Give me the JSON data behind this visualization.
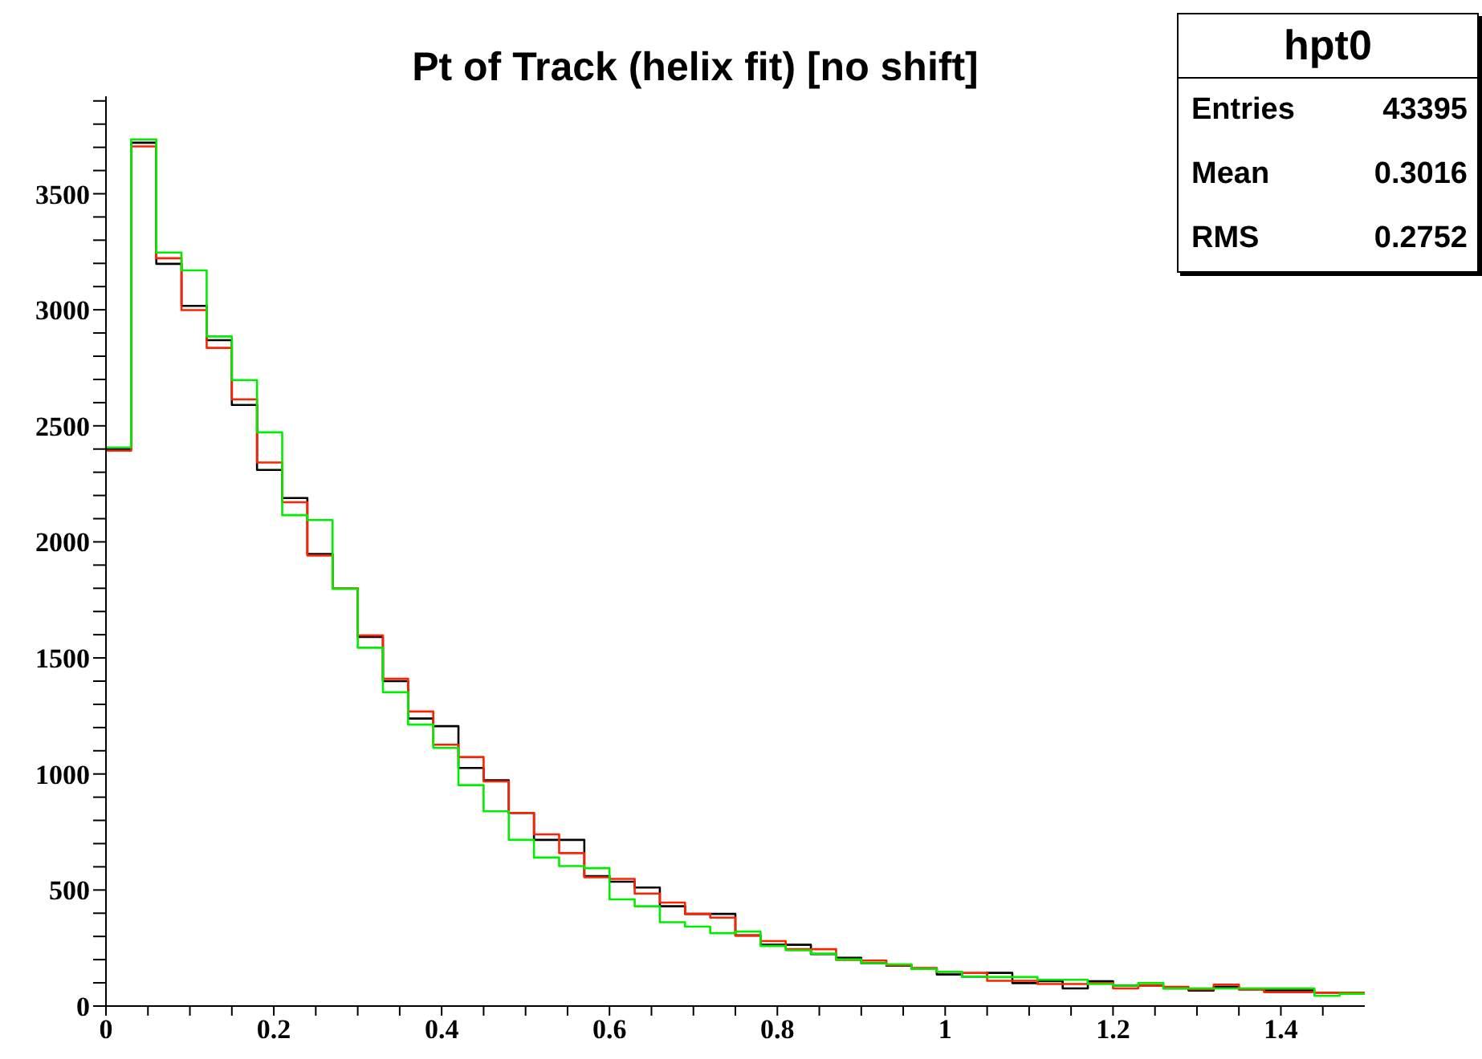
{
  "chart_data": {
    "type": "histogram",
    "title": "Pt of Track (helix fit) [no shift]",
    "annotations": [
      "hpt0",
      "Entries",
      "43395",
      "Mean",
      "0.3016",
      "RMS",
      "0.2752"
    ],
    "bins": [
      0,
      0.03,
      0.06,
      0.09,
      0.12,
      0.15,
      0.18,
      0.21,
      0.24,
      0.27,
      0.3,
      0.33,
      0.36,
      0.39,
      0.42,
      0.45,
      0.48,
      0.51,
      0.54,
      0.57,
      0.6,
      0.63,
      0.66,
      0.69,
      0.72,
      0.75,
      0.78,
      0.81,
      0.84,
      0.87,
      0.9,
      0.93,
      0.96,
      0.99,
      1.02,
      1.05,
      1.08,
      1.11,
      1.14,
      1.17,
      1.2,
      1.23,
      1.26,
      1.29,
      1.32,
      1.35,
      1.38,
      1.41,
      1.44,
      1.47,
      1.5
    ],
    "series": [
      {
        "color": "#000000",
        "values": [
          2400,
          3720,
          3198,
          3017,
          2869,
          2590,
          2310,
          2189,
          1948,
          1800,
          1590,
          1400,
          1239,
          1206,
          1026,
          973,
          832,
          716,
          716,
          560,
          536,
          511,
          430,
          397,
          397,
          305,
          264,
          264,
          224,
          208,
          185,
          174,
          160,
          136,
          127,
          143,
          99,
          107,
          76,
          107,
          88,
          88,
          76,
          67,
          83,
          72,
          67,
          67,
          58,
          58
        ]
      },
      {
        "color": "#ff2200",
        "values": [
          2393,
          3704,
          3222,
          2999,
          2836,
          2614,
          2342,
          2171,
          1941,
          1800,
          1597,
          1410,
          1269,
          1126,
          1073,
          968,
          832,
          740,
          659,
          555,
          548,
          485,
          446,
          397,
          381,
          303,
          280,
          245,
          245,
          199,
          196,
          176,
          164,
          148,
          143,
          109,
          109,
          95,
          95,
          99,
          76,
          88,
          83,
          72,
          92,
          72,
          60,
          60,
          58,
          58
        ]
      },
      {
        "color": "#00ee00",
        "values": [
          2407,
          3734,
          3247,
          3170,
          2885,
          2697,
          2472,
          2115,
          2094,
          1798,
          1544,
          1352,
          1213,
          1112,
          952,
          839,
          716,
          640,
          603,
          594,
          460,
          430,
          361,
          342,
          314,
          321,
          259,
          240,
          226,
          201,
          185,
          180,
          160,
          148,
          127,
          125,
          125,
          113,
          113,
          95,
          88,
          99,
          76,
          76,
          76,
          76,
          76,
          76,
          44,
          53
        ]
      }
    ],
    "xlim": [
      0,
      1.5
    ],
    "xticks": [
      0,
      {
        "value": 0.05,
        "label": null
      },
      {
        "value": 0.1,
        "label": null
      },
      {
        "value": 0.15,
        "label": null
      },
      0.2,
      {
        "value": 0.25,
        "label": null
      },
      {
        "value": 0.3,
        "label": null
      },
      {
        "value": 0.35,
        "label": null
      },
      0.4,
      {
        "value": 0.45,
        "label": null
      },
      {
        "value": 0.5,
        "label": null
      },
      {
        "value": 0.55,
        "label": null
      },
      0.6,
      {
        "value": 0.65,
        "label": null
      },
      {
        "value": 0.7,
        "label": null
      },
      {
        "value": 0.75,
        "label": null
      },
      0.8,
      {
        "value": 0.85,
        "label": null
      },
      {
        "value": 0.9,
        "label": null
      },
      {
        "value": 0.95,
        "label": null
      },
      1,
      {
        "value": 1.05,
        "label": null
      },
      {
        "value": 1.1,
        "label": null
      },
      {
        "value": 1.15,
        "label": null
      },
      1.2,
      {
        "value": 1.25,
        "label": null
      },
      {
        "value": 1.3,
        "label": null
      },
      {
        "value": 1.35,
        "label": null
      },
      1.4,
      {
        "value": 1.45,
        "label": null
      }
    ],
    "ylim": [
      0,
      3920
    ],
    "yticks": [
      0,
      {
        "value": 100,
        "label": null
      },
      {
        "value": 200,
        "label": null
      },
      {
        "value": 300,
        "label": null
      },
      {
        "value": 400,
        "label": null
      },
      500,
      {
        "value": 600,
        "label": null
      },
      {
        "value": 700,
        "label": null
      },
      {
        "value": 800,
        "label": null
      },
      {
        "value": 900,
        "label": null
      },
      1000,
      {
        "value": 1100,
        "label": null
      },
      {
        "value": 1200,
        "label": null
      },
      {
        "value": 1300,
        "label": null
      },
      {
        "value": 1400,
        "label": null
      },
      1500,
      {
        "value": 1600,
        "label": null
      },
      {
        "value": 1700,
        "label": null
      },
      {
        "value": 1800,
        "label": null
      },
      {
        "value": 1900,
        "label": null
      },
      2000,
      {
        "value": 2100,
        "label": null
      },
      {
        "value": 2200,
        "label": null
      },
      {
        "value": 2300,
        "label": null
      },
      {
        "value": 2400,
        "label": null
      },
      2500,
      {
        "value": 2600,
        "label": null
      },
      {
        "value": 2700,
        "label": null
      },
      {
        "value": 2800,
        "label": null
      },
      {
        "value": 2900,
        "label": null
      },
      3000,
      {
        "value": 3100,
        "label": null
      },
      {
        "value": 3200,
        "label": null
      },
      {
        "value": 3300,
        "label": null
      },
      {
        "value": 3400,
        "label": null
      },
      3500,
      {
        "value": 3600,
        "label": null
      },
      {
        "value": 3700,
        "label": null
      },
      {
        "value": 3800,
        "label": null
      },
      {
        "value": 3900,
        "label": null
      }
    ],
    "tick_labels": "xy"
  }
}
